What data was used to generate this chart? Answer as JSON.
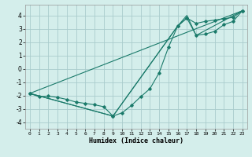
{
  "xlabel": "Humidex (Indice chaleur)",
  "background_color": "#d4eeeb",
  "grid_color": "#aacccc",
  "line_color": "#1a7a6a",
  "xlim": [
    -0.5,
    23.5
  ],
  "ylim": [
    -4.5,
    4.8
  ],
  "xticks": [
    0,
    1,
    2,
    3,
    4,
    5,
    6,
    7,
    8,
    9,
    10,
    11,
    12,
    13,
    14,
    15,
    16,
    17,
    18,
    19,
    20,
    21,
    22,
    23
  ],
  "yticks": [
    -4,
    -3,
    -2,
    -1,
    0,
    1,
    2,
    3,
    4
  ],
  "line1_x": [
    0,
    1,
    2,
    3,
    4,
    5,
    6,
    7,
    8,
    9,
    10,
    11,
    12,
    13,
    14,
    15,
    16,
    17,
    18,
    19,
    20,
    21,
    22,
    23
  ],
  "line1_y": [
    -1.85,
    -2.1,
    -2.05,
    -2.15,
    -2.3,
    -2.5,
    -2.6,
    -2.7,
    -2.85,
    -3.55,
    -3.3,
    -2.75,
    -2.1,
    -1.5,
    -0.3,
    1.6,
    3.2,
    3.8,
    3.4,
    3.55,
    3.65,
    3.75,
    3.85,
    4.35
  ],
  "line2_x": [
    0,
    23
  ],
  "line2_y": [
    -1.85,
    4.35
  ],
  "line3_x": [
    0,
    9,
    16,
    17,
    18,
    19,
    20,
    21,
    22,
    23
  ],
  "line3_y": [
    -1.85,
    -3.55,
    3.2,
    3.8,
    2.5,
    2.6,
    2.8,
    3.3,
    3.55,
    4.35
  ],
  "line4_x": [
    0,
    9,
    16,
    17,
    18,
    23
  ],
  "line4_y": [
    -1.85,
    -3.55,
    3.2,
    4.0,
    2.5,
    4.35
  ]
}
